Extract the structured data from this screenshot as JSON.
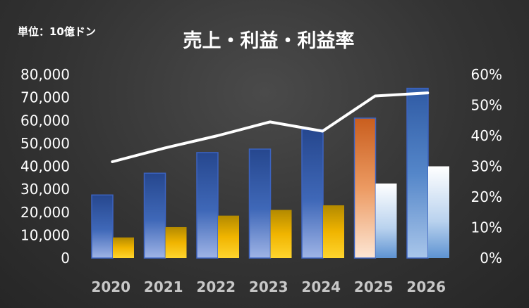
{
  "unit_label": "単位：10億ドン",
  "chart_data": {
    "type": "bar",
    "title": "売上・利益・利益率",
    "categories": [
      "2020",
      "2021",
      "2022",
      "2023",
      "2024",
      "2025",
      "2026"
    ],
    "series": [
      {
        "kind": "bar",
        "axis": "left",
        "values": [
          27500,
          37000,
          46000,
          47500,
          56000,
          61000,
          74000
        ]
      },
      {
        "kind": "bar",
        "axis": "left",
        "values": [
          9000,
          13500,
          18500,
          21000,
          23000,
          32500,
          40000
        ]
      },
      {
        "kind": "line",
        "axis": "right",
        "values": [
          31.5,
          36,
          40,
          44.5,
          41.5,
          53,
          54
        ]
      }
    ],
    "forecast_categories": [
      "2025",
      "2026"
    ],
    "y_left": {
      "min": 0,
      "max": 80000,
      "ticks": [
        "0",
        "10,000",
        "20,000",
        "30,000",
        "40,000",
        "50,000",
        "60,000",
        "70,000",
        "80,000"
      ]
    },
    "y_right": {
      "min": 0,
      "max": 60,
      "ticks": [
        "0%",
        "10%",
        "20%",
        "30%",
        "40%",
        "50%",
        "60%"
      ]
    },
    "grid": false,
    "colors": {
      "bar1": "#3a5ea8",
      "bar1_forecast_2025": "#d9742f",
      "bar2": "#f2b600",
      "bar2_forecast": "#ffffff",
      "line": "#ffffff",
      "background": "#333333"
    }
  }
}
